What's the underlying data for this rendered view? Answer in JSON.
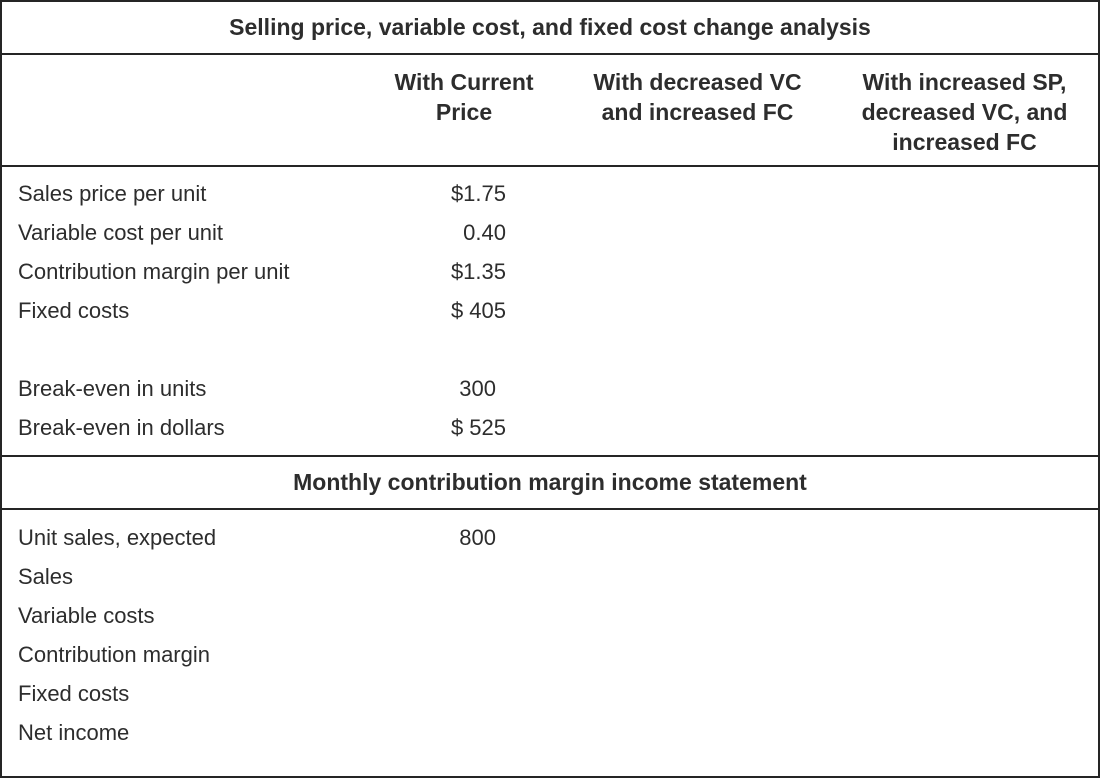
{
  "table": {
    "title": "Selling price, variable cost, and fixed cost change analysis",
    "columns": [
      {
        "label": ""
      },
      {
        "label": "With Current\nPrice"
      },
      {
        "label": "With decreased VC\nand increased FC"
      },
      {
        "label": "With increased SP,\ndecreased VC, and\nincreased FC"
      }
    ],
    "section1": {
      "rows": [
        {
          "label": "Sales price per unit",
          "current": "$1.75"
        },
        {
          "label": "Variable cost per unit",
          "current": "0.40"
        },
        {
          "label": "Contribution margin per unit",
          "current": "$1.35"
        },
        {
          "label": "Fixed costs",
          "current": "$ 405"
        },
        {
          "label": "",
          "current": ""
        },
        {
          "label": "Break-even in units",
          "current": "300"
        },
        {
          "label": "Break-even in dollars",
          "current": "$ 525"
        }
      ]
    },
    "section2": {
      "title": "Monthly contribution margin income statement",
      "rows": [
        {
          "label": "Unit sales, expected",
          "current": "800"
        },
        {
          "label": "Sales",
          "current": ""
        },
        {
          "label": "Variable costs",
          "current": ""
        },
        {
          "label": "Contribution margin",
          "current": ""
        },
        {
          "label": "Fixed costs",
          "current": ""
        },
        {
          "label": "Net income",
          "current": ""
        }
      ]
    },
    "colors": {
      "text": "#2d2d2d",
      "border": "#252525",
      "background": "#ffffff"
    }
  }
}
